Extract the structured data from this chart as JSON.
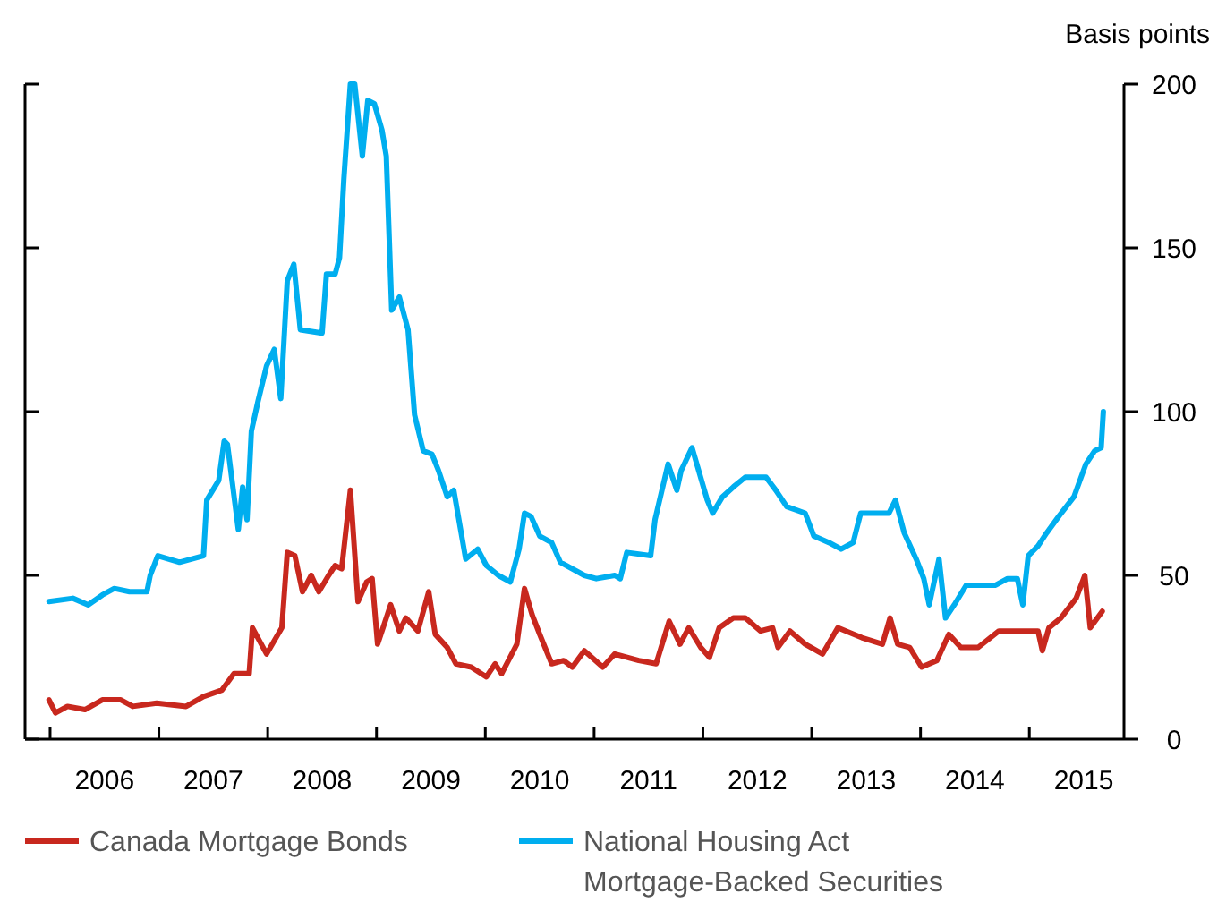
{
  "chart_data": {
    "type": "line",
    "ylabel": "Basis points",
    "xlim": [
      2005.77,
      2015.87
    ],
    "xticks": [
      {
        "value": 2006,
        "label": null
      },
      {
        "value": 2006.5,
        "label": "2006"
      },
      {
        "value": 2007,
        "label": null
      },
      {
        "value": 2007.5,
        "label": "2007"
      },
      {
        "value": 2008,
        "label": null
      },
      {
        "value": 2008.5,
        "label": "2008"
      },
      {
        "value": 2009,
        "label": null
      },
      {
        "value": 2009.5,
        "label": "2009"
      },
      {
        "value": 2010,
        "label": null
      },
      {
        "value": 2010.5,
        "label": "2010"
      },
      {
        "value": 2011,
        "label": null
      },
      {
        "value": 2011.5,
        "label": "2011"
      },
      {
        "value": 2012,
        "label": null
      },
      {
        "value": 2012.5,
        "label": "2012"
      },
      {
        "value": 2013,
        "label": null
      },
      {
        "value": 2013.5,
        "label": "2013"
      },
      {
        "value": 2014,
        "label": null
      },
      {
        "value": 2014.5,
        "label": "2014"
      },
      {
        "value": 2015,
        "label": null
      },
      {
        "value": 2015.5,
        "label": "2015"
      }
    ],
    "ylim": [
      0,
      200
    ],
    "yticks": [
      0,
      50,
      100,
      150,
      200
    ],
    "grid": false,
    "legend": "bottom",
    "line_style": "solid",
    "marker": "none",
    "series": [
      {
        "name": "Canada Mortgage Bonds",
        "color": "#c8281e",
        "x": [
          2005.99,
          2006.05,
          2006.16,
          2006.32,
          2006.48,
          2006.65,
          2006.76,
          2006.98,
          2007.25,
          2007.41,
          2007.58,
          2007.69,
          2007.83,
          2007.86,
          2007.99,
          2008.13,
          2008.18,
          2008.25,
          2008.32,
          2008.4,
          2008.47,
          2008.56,
          2008.62,
          2008.68,
          2008.76,
          2008.83,
          2008.91,
          2008.96,
          2009.01,
          2009.13,
          2009.21,
          2009.27,
          2009.38,
          2009.48,
          2009.54,
          2009.65,
          2009.73,
          2009.87,
          2010.01,
          2010.09,
          2010.15,
          2010.29,
          2010.36,
          2010.43,
          2010.5,
          2010.61,
          2010.72,
          2010.8,
          2010.91,
          2011.08,
          2011.19,
          2011.41,
          2011.57,
          2011.69,
          2011.79,
          2011.87,
          2011.98,
          2012.06,
          2012.15,
          2012.28,
          2012.39,
          2012.53,
          2012.64,
          2012.69,
          2012.8,
          2012.94,
          2013.1,
          2013.24,
          2013.46,
          2013.65,
          2013.72,
          2013.79,
          2013.9,
          2014.01,
          2014.15,
          2014.26,
          2014.37,
          2014.53,
          2014.72,
          2014.86,
          2015.08,
          2015.12,
          2015.18,
          2015.29,
          2015.43,
          2015.51,
          2015.56,
          2015.67
        ],
        "values": [
          12,
          8,
          10,
          9,
          12,
          12,
          10,
          11,
          10,
          13,
          15,
          20,
          20,
          34,
          26,
          34,
          57,
          56,
          45,
          50,
          45,
          50,
          53,
          52,
          76,
          42,
          48,
          49,
          29,
          41,
          33,
          37,
          33,
          45,
          32,
          28,
          23,
          22,
          19,
          23,
          20,
          29,
          46,
          38,
          32,
          23,
          24,
          22,
          27,
          22,
          26,
          24,
          23,
          36,
          29,
          34,
          28,
          25,
          34,
          37,
          37,
          33,
          34,
          28,
          33,
          29,
          26,
          34,
          31,
          29,
          37,
          29,
          28,
          22,
          24,
          32,
          28,
          28,
          33,
          33,
          33,
          27,
          34,
          37,
          43,
          50,
          34,
          39
        ]
      },
      {
        "name": "National Housing Act\nMortgage-Backed Securities",
        "color": "#00aeef",
        "x": [
          2005.99,
          2006.21,
          2006.35,
          2006.48,
          2006.59,
          2006.73,
          2006.89,
          2006.92,
          2006.99,
          2007.19,
          2007.41,
          2007.44,
          2007.55,
          2007.6,
          2007.63,
          2007.73,
          2007.77,
          2007.81,
          2007.85,
          2007.91,
          2007.99,
          2008.06,
          2008.12,
          2008.18,
          2008.24,
          2008.3,
          2008.5,
          2008.54,
          2008.62,
          2008.66,
          2008.7,
          2008.76,
          2008.8,
          2008.87,
          2008.92,
          2008.98,
          2009.05,
          2009.09,
          2009.14,
          2009.21,
          2009.29,
          2009.35,
          2009.43,
          2009.51,
          2009.57,
          2009.65,
          2009.71,
          2009.82,
          2009.93,
          2010.01,
          2010.12,
          2010.23,
          2010.31,
          2010.36,
          2010.42,
          2010.5,
          2010.61,
          2010.69,
          2010.91,
          2011.02,
          2011.19,
          2011.24,
          2011.3,
          2011.52,
          2011.56,
          2011.68,
          2011.76,
          2011.8,
          2011.9,
          2012.04,
          2012.09,
          2012.18,
          2012.28,
          2012.39,
          2012.58,
          2012.67,
          2012.77,
          2012.94,
          2013.02,
          2013.16,
          2013.27,
          2013.38,
          2013.45,
          2013.54,
          2013.71,
          2013.77,
          2013.85,
          2013.96,
          2014.03,
          2014.08,
          2014.17,
          2014.23,
          2014.31,
          2014.42,
          2014.69,
          2014.8,
          2014.89,
          2014.94,
          2014.99,
          2015.08,
          2015.16,
          2015.27,
          2015.41,
          2015.52,
          2015.6,
          2015.66,
          2015.68
        ],
        "values": [
          42,
          43,
          41,
          44,
          46,
          45,
          45,
          50,
          56,
          54,
          56,
          73,
          79,
          91,
          90,
          64,
          77,
          67,
          94,
          103,
          114,
          119,
          104,
          140,
          145,
          125,
          124,
          142,
          142,
          147,
          171,
          200,
          200,
          178,
          195,
          194,
          186,
          178,
          131,
          135,
          125,
          99,
          88,
          87,
          82,
          74,
          76,
          55,
          58,
          53,
          50,
          48,
          58,
          69,
          68,
          62,
          60,
          54,
          50,
          49,
          50,
          49,
          57,
          56,
          67,
          84,
          76,
          82,
          89,
          73,
          69,
          74,
          77,
          80,
          80,
          76,
          71,
          69,
          62,
          60,
          58,
          60,
          69,
          69,
          69,
          73,
          63,
          55,
          49,
          41,
          55,
          37,
          41,
          47,
          47,
          49,
          49,
          41,
          56,
          59,
          63,
          68,
          74,
          84,
          88,
          89,
          100
        ]
      }
    ]
  }
}
